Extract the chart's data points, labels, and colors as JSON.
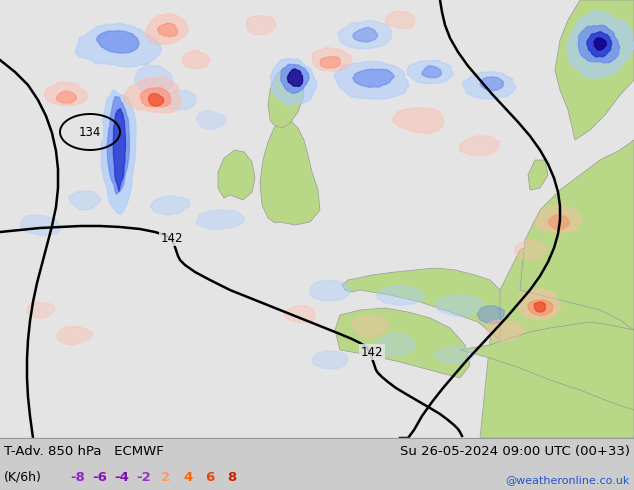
{
  "title_left": "T-Adv. 850 hPa   ECMWF",
  "title_right": "Su 26-05-2024 09:00 UTC (00+33)",
  "legend_label": "(K/6h)",
  "legend_values": [
    "-8",
    "-6",
    "-4",
    "-2",
    "2",
    "4",
    "6",
    "8"
  ],
  "neg_colors": [
    "#9922bb",
    "#9922bb",
    "#9922bb",
    "#9922bb"
  ],
  "pos_colors": [
    "#ff8844",
    "#ff6600",
    "#ff3300",
    "#cc1100"
  ],
  "watermark": "@weatheronline.co.uk",
  "background_color": "#e8e8e8",
  "land_color": "#b8d888",
  "sea_color": "#e4e4e4",
  "fig_width": 6.34,
  "fig_height": 4.9,
  "dpi": 100,
  "cold_light": "#aaccff",
  "cold_mid": "#6688ee",
  "cold_dark": "#2233cc",
  "cold_deep": "#110088",
  "warm_light": "#ffbbaa",
  "warm_mid": "#ff8866",
  "warm_dark": "#ee3311",
  "bar_bg": "#cccccc"
}
